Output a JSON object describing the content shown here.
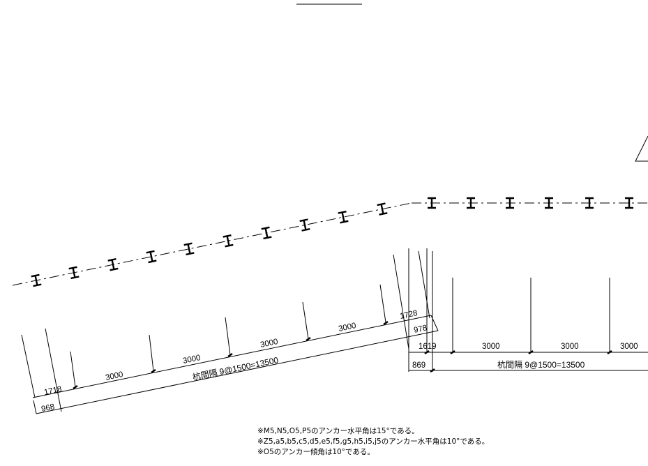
{
  "left_section": {
    "dimensions": {
      "offset_a": "1718",
      "spacing_1": "3000",
      "spacing_2": "3000",
      "spacing_3": "3000",
      "spacing_4": "3000",
      "offset_b": "1728",
      "offset_c": "978",
      "offset_d": "968",
      "pile_spacing": "杭間隔 9@1500=13500"
    }
  },
  "right_section": {
    "dimensions": {
      "offset_a": "1619",
      "spacing_1": "3000",
      "spacing_2": "3000",
      "spacing_3": "3000",
      "offset_b": "869",
      "pile_spacing": "杭間隔 9@1500=13500"
    }
  },
  "notes": [
    "※M5,N5,O5,P5のアンカー水平角は15°である。",
    "※Z5,a5,b5,c5,d5,e5,f5,g5,h5,i5,j5のアンカー水平角は10°である。",
    "※O5のアンカー傾角は10°である。"
  ]
}
